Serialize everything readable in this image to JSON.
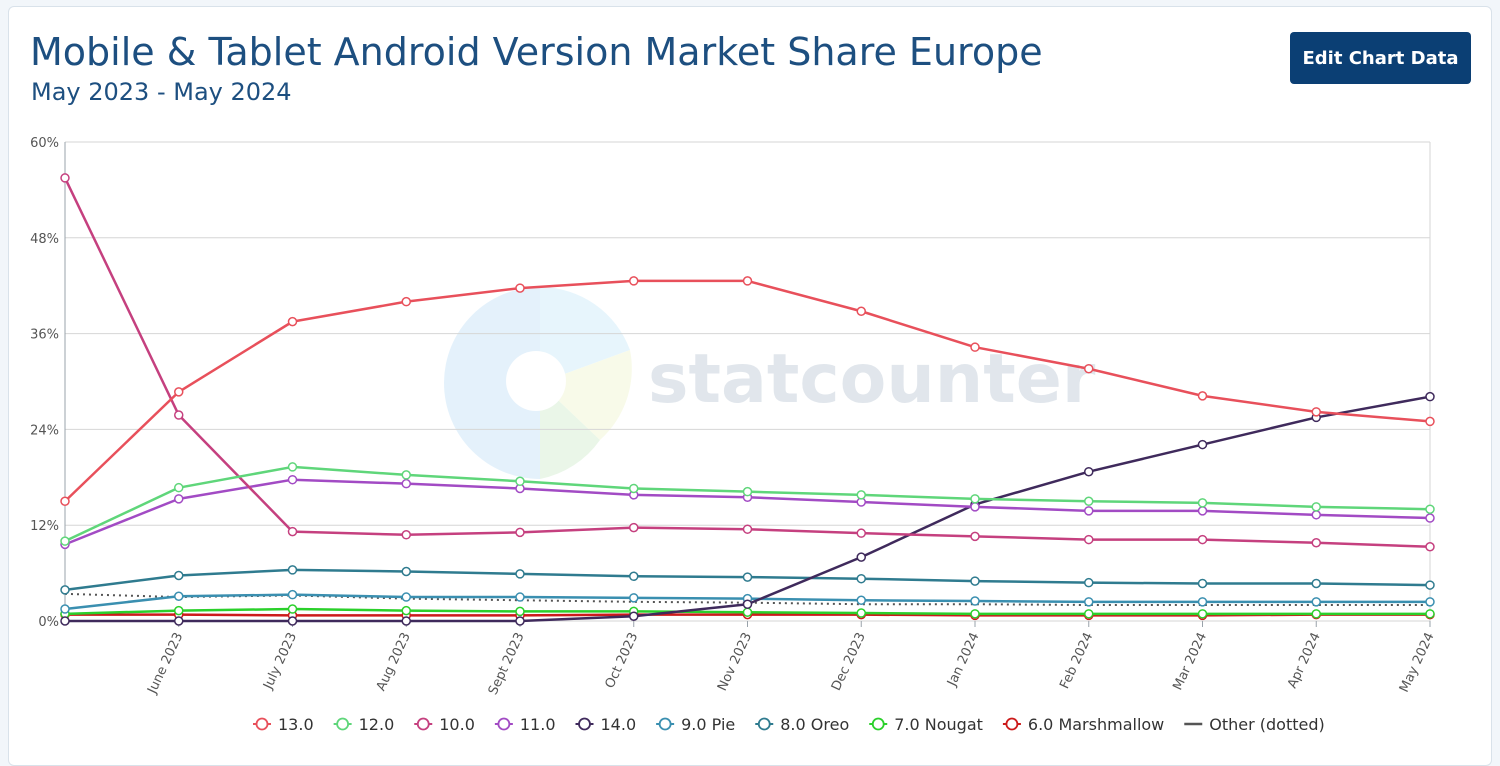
{
  "header": {
    "title": "Mobile & Tablet Android Version Market Share Europe",
    "subtitle": "May 2023 - May 2024",
    "edit_button_label": "Edit Chart Data"
  },
  "watermark": {
    "text": "statcounter"
  },
  "colors": {
    "gridline": "#d6d6d6",
    "axis": "#9aa3ab",
    "tick_label": "#555555",
    "title": "#1d4f80",
    "button": "#0b3f74"
  },
  "chart_data": {
    "type": "line",
    "categories": [
      "May 2023",
      "June 2023",
      "July 2023",
      "Aug 2023",
      "Sept 2023",
      "Oct 2023",
      "Nov 2023",
      "Dec 2023",
      "Jan 2024",
      "Feb 2024",
      "Mar 2024",
      "Apr 2024",
      "May 2024"
    ],
    "x_tick_labels": [
      "June 2023",
      "July 2023",
      "Aug 2023",
      "Sept 2023",
      "Oct 2023",
      "Nov 2023",
      "Dec 2023",
      "Jan 2024",
      "Feb 2024",
      "Mar 2024",
      "Apr 2024",
      "May 2024"
    ],
    "y_ticks": [
      0,
      12,
      24,
      36,
      48,
      60
    ],
    "y_tick_labels": [
      "0%",
      "12%",
      "24%",
      "36%",
      "48%",
      "60%"
    ],
    "ylim": [
      0,
      60
    ],
    "grid": true,
    "legend_position": "bottom",
    "series": [
      {
        "name": "13.0",
        "color": "#e8505b",
        "values": [
          15.0,
          28.7,
          37.5,
          40.0,
          41.7,
          42.6,
          42.6,
          38.8,
          34.3,
          31.6,
          28.2,
          26.2,
          25.0
        ]
      },
      {
        "name": "12.0",
        "color": "#5fd67a",
        "values": [
          10.0,
          16.7,
          19.3,
          18.3,
          17.5,
          16.6,
          16.2,
          15.8,
          15.3,
          15.0,
          14.8,
          14.3,
          14.0
        ]
      },
      {
        "name": "10.0",
        "color": "#c5407f",
        "values": [
          55.5,
          25.8,
          11.2,
          10.8,
          11.1,
          11.7,
          11.5,
          11.0,
          10.6,
          10.2,
          10.2,
          9.8,
          9.3
        ]
      },
      {
        "name": "11.0",
        "color": "#a24bc4",
        "values": [
          9.6,
          15.3,
          17.7,
          17.2,
          16.6,
          15.8,
          15.5,
          14.9,
          14.3,
          13.8,
          13.8,
          13.3,
          12.9
        ]
      },
      {
        "name": "14.0",
        "color": "#3f2a5c",
        "values": [
          0.0,
          0.0,
          0.0,
          0.0,
          0.0,
          0.6,
          2.1,
          8.0,
          14.6,
          18.7,
          22.1,
          25.5,
          28.1
        ]
      },
      {
        "name": "9.0 Pie",
        "color": "#3a8fb0",
        "values": [
          1.5,
          3.1,
          3.3,
          3.0,
          3.0,
          2.9,
          2.8,
          2.6,
          2.5,
          2.4,
          2.4,
          2.4,
          2.4
        ]
      },
      {
        "name": "8.0 Oreo",
        "color": "#2f7b8f",
        "values": [
          3.9,
          5.7,
          6.4,
          6.2,
          5.9,
          5.6,
          5.5,
          5.3,
          5.0,
          4.8,
          4.7,
          4.7,
          4.5
        ]
      },
      {
        "name": "7.0 Nougat",
        "color": "#2bd02b",
        "values": [
          0.9,
          1.3,
          1.5,
          1.3,
          1.2,
          1.2,
          1.1,
          1.0,
          0.9,
          0.9,
          0.9,
          0.9,
          0.9
        ]
      },
      {
        "name": "6.0 Marshmallow",
        "color": "#cc1b1b",
        "values": [
          0.8,
          0.8,
          0.7,
          0.7,
          0.7,
          0.8,
          0.8,
          0.8,
          0.7,
          0.7,
          0.7,
          0.8,
          0.8
        ]
      },
      {
        "name": "Other (dotted)",
        "color": "#555555",
        "dotted": true,
        "values": [
          3.4,
          3.0,
          3.2,
          2.8,
          2.6,
          2.4,
          2.3,
          2.1,
          2.1,
          2.0,
          2.0,
          2.0,
          2.0
        ]
      }
    ]
  }
}
